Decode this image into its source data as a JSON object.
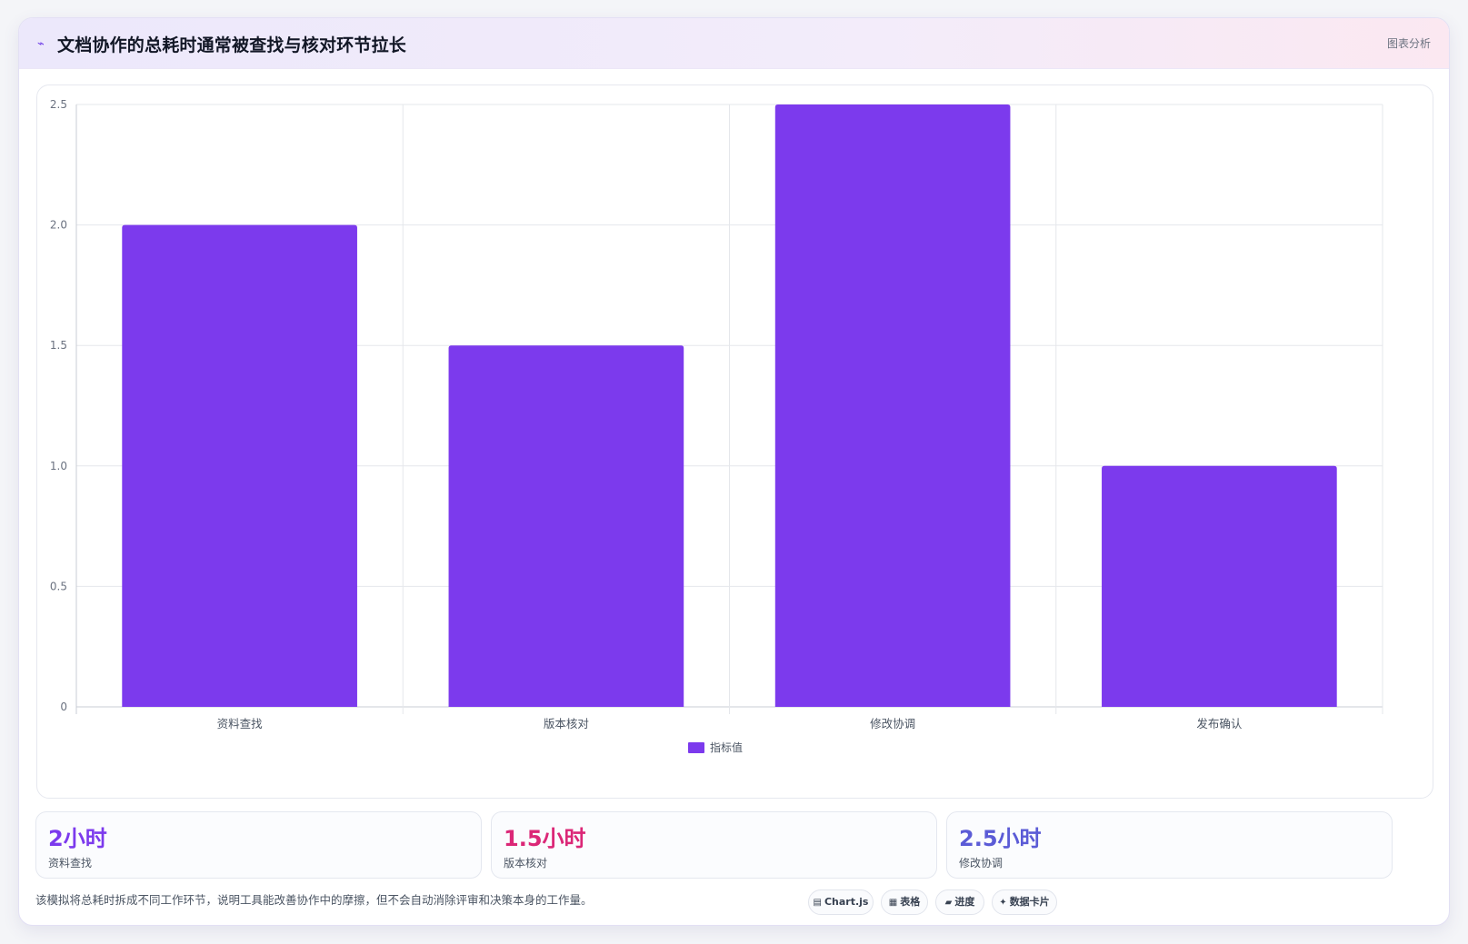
{
  "header": {
    "icon": "sparkline-icon",
    "title": "文档协作的总耗时通常被查找与核对环节拉长",
    "tag": "图表分析"
  },
  "chart_data": {
    "type": "bar",
    "categories": [
      "资料查找",
      "版本核对",
      "修改协调",
      "发布确认"
    ],
    "series": [
      {
        "name": "指标值",
        "values": [
          2,
          1.5,
          2.5,
          1
        ],
        "color": "#7c3aed"
      }
    ],
    "ylim": [
      0,
      2.5
    ],
    "yticks": [
      0,
      0.5,
      1.0,
      1.5,
      2.0,
      2.5
    ],
    "ytick_labels": [
      "0",
      "0.5",
      "1.0",
      "1.5",
      "2.0",
      "2.5"
    ],
    "grid": true,
    "legend": "bottom-center",
    "xlabel": "",
    "ylabel": ""
  },
  "stats": [
    {
      "value": "2小时",
      "label": "资料查找",
      "color": "#7c3aed"
    },
    {
      "value": "1.5小时",
      "label": "版本核对",
      "color": "#db2777"
    },
    {
      "value": "2.5小时",
      "label": "修改协调",
      "color": "#5b5bd6"
    }
  ],
  "footnote": "该模拟将总耗时拆成不同工作环节，说明工具能改善协作中的摩擦，但不会自动消除评审和决策本身的工作量。",
  "chips": [
    {
      "icon": "chart-icon",
      "glyph": "▤",
      "label": "Chart.js"
    },
    {
      "icon": "table-icon",
      "glyph": "▦",
      "label": "表格"
    },
    {
      "icon": "progress-icon",
      "glyph": "▰",
      "label": "进度"
    },
    {
      "icon": "sparkle-icon",
      "glyph": "✦",
      "label": "数据卡片"
    }
  ]
}
